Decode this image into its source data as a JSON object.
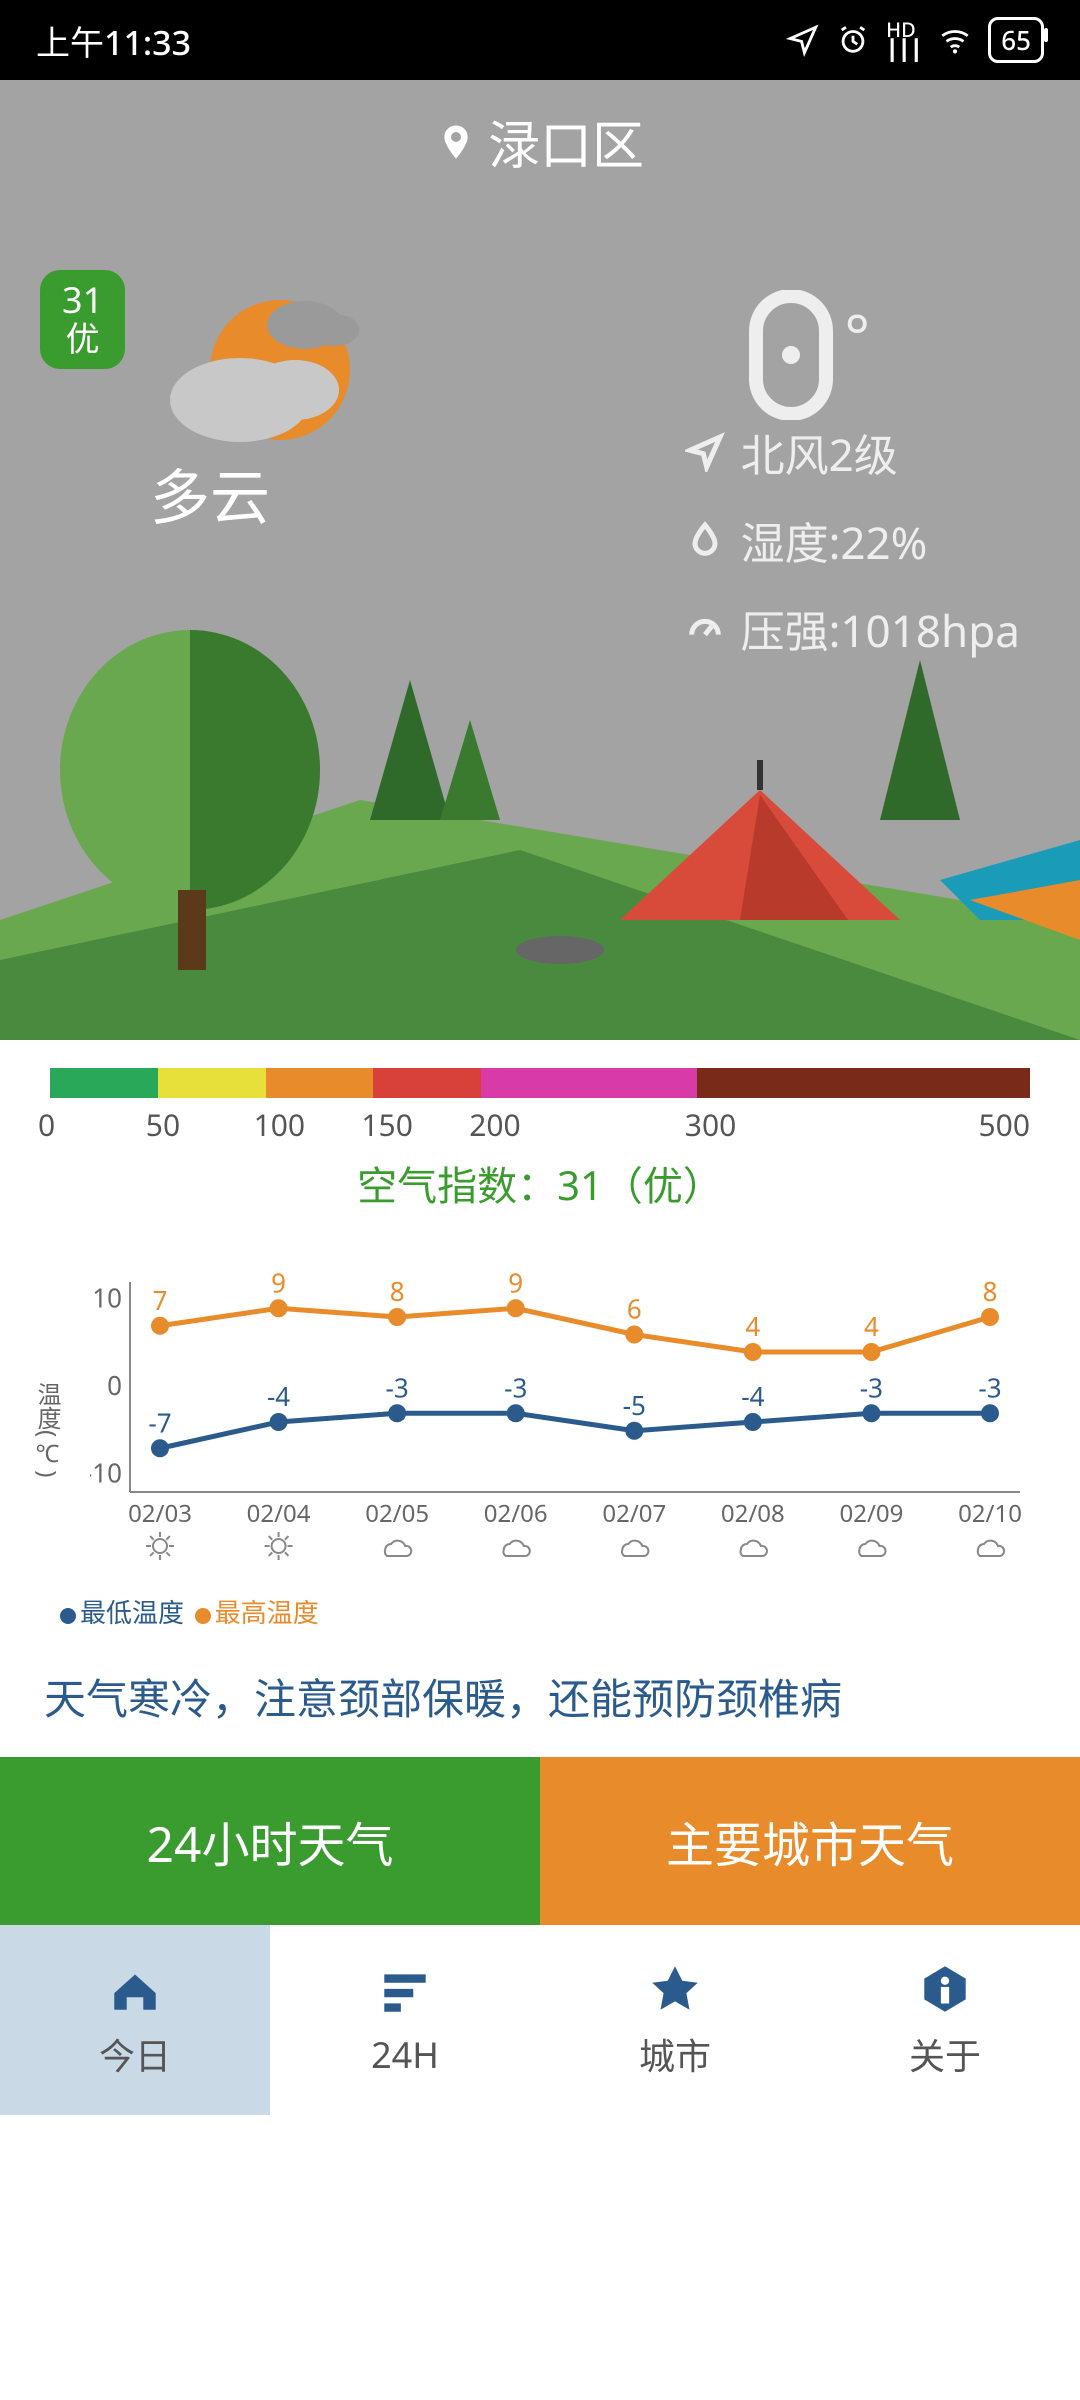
{
  "status": {
    "time": "上午11:33",
    "battery": "65"
  },
  "location": "渌口区",
  "aqi_badge": {
    "value": "31",
    "grade": "优",
    "bg": "#3a9b2f"
  },
  "temp": "0",
  "condition": "多云",
  "details": {
    "wind": "北风2级",
    "humidity_label": "湿度:22%",
    "pressure_label": "压强:1018hpa"
  },
  "aqi_scale": {
    "segments": [
      {
        "color": "#2aa85a",
        "w": 11
      },
      {
        "color": "#e8e03a",
        "w": 11
      },
      {
        "color": "#e88b2a",
        "w": 11
      },
      {
        "color": "#d8403a",
        "w": 11
      },
      {
        "color": "#d83aa8",
        "w": 22
      },
      {
        "color": "#7a2a18",
        "w": 34
      }
    ],
    "ticks": [
      "0",
      "50",
      "100",
      "150",
      "200",
      "300",
      "500"
    ],
    "tick_pos": [
      0,
      11,
      22,
      33,
      44,
      66,
      100
    ],
    "label_prefix": "空气指数：",
    "value": "31",
    "grade": "（优）",
    "color": "#3a9b2f"
  },
  "chart": {
    "y_title": "温度(℃)",
    "ylim": [
      -12,
      12
    ],
    "yticks": [
      -10,
      0,
      10
    ],
    "dates": [
      "02/03",
      "02/04",
      "02/05",
      "02/06",
      "02/07",
      "02/08",
      "02/09",
      "02/10"
    ],
    "icons": [
      "sun",
      "sun",
      "cloud",
      "cloud",
      "cloud",
      "cloud",
      "cloud",
      "cloud"
    ],
    "high": [
      7,
      9,
      8,
      9,
      6,
      4,
      4,
      8
    ],
    "low": [
      -7,
      -4,
      -3,
      -3,
      -5,
      -4,
      -3,
      -3
    ],
    "high_color": "#e88b2a",
    "low_color": "#2b5b8c",
    "legend_low": "最低温度",
    "legend_high": "最高温度",
    "axis_color": "#888",
    "label_color": "#666"
  },
  "advice": "天气寒冷，注意颈部保暖，还能预防颈椎病",
  "big_buttons": {
    "left": {
      "label": "24小时天气",
      "bg": "#3a9b2f"
    },
    "right": {
      "label": "主要城市天气",
      "bg": "#e88b2a"
    }
  },
  "nav": {
    "items": [
      {
        "label": "今日",
        "icon": "home",
        "active": true
      },
      {
        "label": "24H",
        "icon": "bars",
        "active": false
      },
      {
        "label": "城市",
        "icon": "star",
        "active": false
      },
      {
        "label": "关于",
        "icon": "info",
        "active": false
      }
    ],
    "icon_color": "#2b5b8c"
  }
}
